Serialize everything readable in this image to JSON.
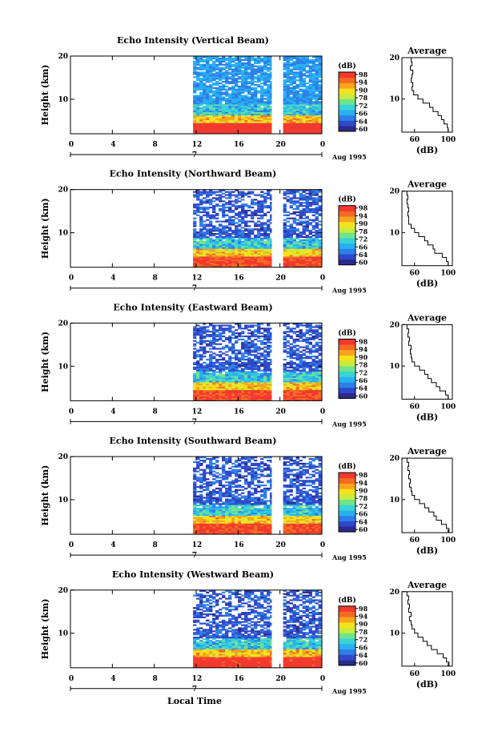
{
  "chart_data": {
    "type": "heatmap",
    "x_axis": {
      "xlim": [
        0,
        24
      ],
      "ticks": [
        "0",
        "4",
        "8",
        "12",
        "16",
        "20",
        "0"
      ],
      "date_marker": "7",
      "month_label": "Aug 1995",
      "xlabel": "Local Time"
    },
    "y_axis": {
      "ylabel": "Height (km)",
      "ylim": [
        2,
        20
      ],
      "ticks": [
        "10",
        "20"
      ]
    },
    "colorbar": {
      "label": "(dB)",
      "range": [
        50,
        100
      ],
      "ticks": [
        "98",
        "94",
        "90",
        "78",
        "72",
        "66",
        "64",
        "60"
      ],
      "colors": [
        "#2b2a8c",
        "#2f48c9",
        "#2c7ee8",
        "#27b0f2",
        "#39d3d7",
        "#6fe38e",
        "#c7ec3e",
        "#f5e21c",
        "#f7a51c",
        "#f46a22",
        "#f3382d"
      ]
    },
    "data_segments_hours": [
      [
        11.7,
        19.2
      ],
      [
        20.3,
        24
      ]
    ],
    "average_profile": {
      "title": "Average",
      "xlabel": "(dB)",
      "xticks": [
        "60",
        "100"
      ],
      "xlim": [
        45,
        105
      ],
      "ylim": [
        2,
        20
      ],
      "yticks": [
        "10",
        "20"
      ]
    },
    "panels": [
      {
        "title": "Echo Intensity (Vertical Beam)",
        "low_level_db": 96,
        "high_level_db": 62,
        "clear_fraction": 0.15,
        "avg_profile": [
          [
            2,
            100
          ],
          [
            3,
            99
          ],
          [
            4,
            95
          ],
          [
            5,
            92
          ],
          [
            6,
            88
          ],
          [
            7,
            82
          ],
          [
            8,
            78
          ],
          [
            9,
            70
          ],
          [
            10,
            64
          ],
          [
            11,
            59
          ],
          [
            12,
            57
          ],
          [
            13,
            58
          ],
          [
            14,
            56
          ],
          [
            15,
            57
          ],
          [
            16,
            58
          ],
          [
            17,
            55
          ],
          [
            18,
            57
          ],
          [
            19,
            56
          ],
          [
            20,
            55
          ]
        ]
      },
      {
        "title": "Echo Intensity (Northward Beam)",
        "low_level_db": 94,
        "high_level_db": 56,
        "clear_fraction": 0.4,
        "avg_profile": [
          [
            2,
            100
          ],
          [
            3,
            98
          ],
          [
            4,
            93
          ],
          [
            5,
            84
          ],
          [
            6,
            82
          ],
          [
            7,
            76
          ],
          [
            8,
            72
          ],
          [
            9,
            65
          ],
          [
            10,
            60
          ],
          [
            11,
            56
          ],
          [
            12,
            53
          ],
          [
            13,
            53
          ],
          [
            14,
            52
          ],
          [
            15,
            53
          ],
          [
            16,
            52
          ],
          [
            17,
            51
          ],
          [
            18,
            52
          ],
          [
            19,
            51
          ],
          [
            20,
            51
          ]
        ]
      },
      {
        "title": "Echo Intensity (Eastward Beam)",
        "low_level_db": 94,
        "high_level_db": 56,
        "clear_fraction": 0.4,
        "avg_profile": [
          [
            2,
            100
          ],
          [
            3,
            97
          ],
          [
            4,
            90
          ],
          [
            5,
            86
          ],
          [
            6,
            80
          ],
          [
            7,
            76
          ],
          [
            8,
            72
          ],
          [
            9,
            66
          ],
          [
            10,
            60
          ],
          [
            11,
            57
          ],
          [
            12,
            56
          ],
          [
            13,
            55
          ],
          [
            14,
            56
          ],
          [
            15,
            53
          ],
          [
            16,
            54
          ],
          [
            17,
            52
          ],
          [
            18,
            53
          ],
          [
            19,
            51
          ],
          [
            20,
            51
          ]
        ]
      },
      {
        "title": "Echo Intensity (Southward Beam)",
        "low_level_db": 94,
        "high_level_db": 56,
        "clear_fraction": 0.4,
        "avg_profile": [
          [
            2,
            101
          ],
          [
            3,
            98
          ],
          [
            4,
            92
          ],
          [
            5,
            86
          ],
          [
            6,
            83
          ],
          [
            7,
            77
          ],
          [
            8,
            72
          ],
          [
            9,
            66
          ],
          [
            10,
            60
          ],
          [
            11,
            57
          ],
          [
            12,
            56
          ],
          [
            13,
            54
          ],
          [
            14,
            55
          ],
          [
            15,
            53
          ],
          [
            16,
            54
          ],
          [
            17,
            52
          ],
          [
            18,
            53
          ],
          [
            19,
            51
          ],
          [
            20,
            52
          ]
        ]
      },
      {
        "title": "Echo Intensity (Westward Beam)",
        "low_level_db": 95,
        "high_level_db": 56,
        "clear_fraction": 0.4,
        "avg_profile": [
          [
            2,
            101
          ],
          [
            3,
            98
          ],
          [
            4,
            94
          ],
          [
            5,
            87
          ],
          [
            6,
            80
          ],
          [
            7,
            75
          ],
          [
            8,
            70
          ],
          [
            9,
            64
          ],
          [
            10,
            60
          ],
          [
            11,
            57
          ],
          [
            12,
            56
          ],
          [
            13,
            54
          ],
          [
            14,
            56
          ],
          [
            15,
            53
          ],
          [
            16,
            54
          ],
          [
            17,
            52
          ],
          [
            18,
            53
          ],
          [
            19,
            51
          ],
          [
            20,
            51
          ]
        ]
      }
    ]
  }
}
